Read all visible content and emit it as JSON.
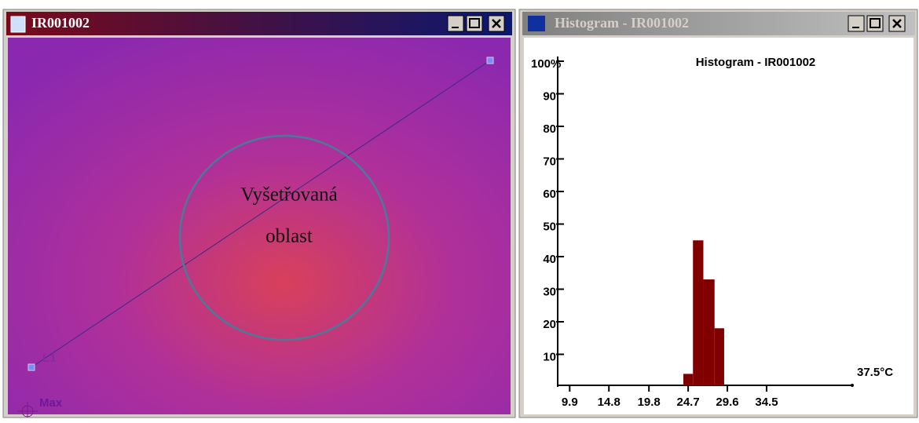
{
  "image_window": {
    "title": "IR001002",
    "annotation": [
      "Vyšetřovaná",
      "oblast"
    ],
    "line_label": "L1",
    "marker_label": "Max"
  },
  "histogram_window": {
    "title": "Histogram - IR001002",
    "chart_data": {
      "type": "histogram",
      "title": "Histogram - IR001002",
      "bins": [
        24.1,
        25.3,
        26.6,
        28.0,
        29.2
      ],
      "values": [
        4,
        45,
        33,
        18
      ],
      "color": "#800000",
      "xlim": [
        8.4,
        45.2
      ],
      "xticks": [
        9.9,
        14.8,
        19.8,
        24.7,
        29.6,
        34.5
      ],
      "x_max_label": "37.5°C",
      "ylim": [
        0,
        100
      ],
      "yticks": [
        10,
        20,
        30,
        40,
        50,
        60,
        70,
        80,
        90,
        {
          "value": 100,
          "label": "100%"
        }
      ]
    }
  }
}
